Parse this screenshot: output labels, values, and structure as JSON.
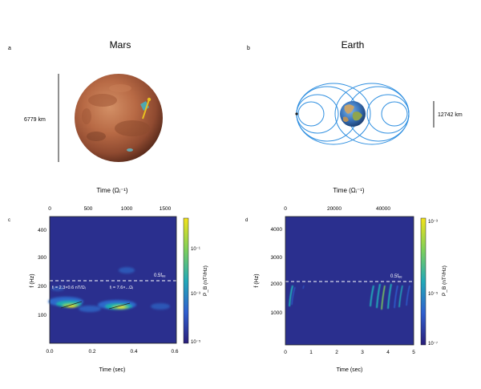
{
  "panel_a": {
    "letter": "a",
    "title": "Mars",
    "scale_label": "6779 km"
  },
  "panel_b": {
    "letter": "b",
    "title": "Earth",
    "scale_label": "12742 km"
  },
  "panel_c": {
    "letter": "c",
    "top_axis_label": "Time (Ωᵢ⁻¹)",
    "top_ticks": [
      "0",
      "500",
      "1000",
      "1500"
    ],
    "ylabel": "f (Hz)",
    "y_ticks": [
      "100",
      "200",
      "300",
      "400"
    ],
    "xlabel": "Time (sec)",
    "x_ticks": [
      "0.0",
      "0.2",
      "0.4",
      "0.6"
    ],
    "line_label": "0.5fₑₑ",
    "annotation_left": "fᵢ = 2.3×0.6 nT/Ωᵢ",
    "annotation_right": "fᵢ = 7.6×...Ωᵢ",
    "colorbar_label": "P_B (nT²/Hz)",
    "colorbar_ticks": [
      "10⁻⁵",
      "10⁻³",
      "10⁻¹"
    ]
  },
  "panel_d": {
    "letter": "d",
    "top_axis_label": "Time (Ωᵢ⁻¹)",
    "top_ticks": [
      "0",
      "20000",
      "40000"
    ],
    "ylabel": "f (Hz)",
    "y_ticks": [
      "1000",
      "2000",
      "3000",
      "4000"
    ],
    "xlabel": "Time (sec)",
    "x_ticks": [
      "0",
      "1",
      "2",
      "3",
      "4",
      "5"
    ],
    "line_label": "0.5fₑₑ",
    "colorbar_label": "P_B (nT²/Hz)",
    "colorbar_ticks": [
      "10⁻⁷",
      "10⁻⁵",
      "10⁻³"
    ]
  },
  "colors": {
    "background": "#2a2f8e",
    "field_lines": "#2f8fe0",
    "mars": "#b86a45"
  }
}
